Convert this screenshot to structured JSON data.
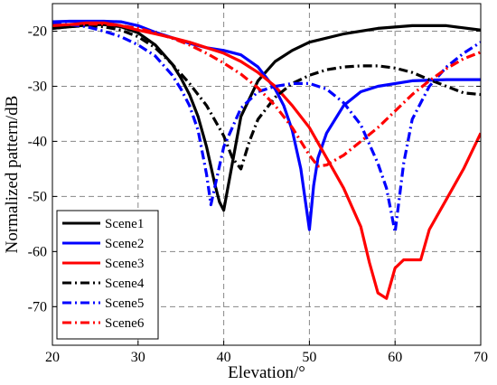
{
  "chart_data": {
    "type": "line",
    "xlabel": "Elevation/°",
    "ylabel": "Normalized pattern/dB",
    "xlim": [
      20,
      70
    ],
    "ylim": [
      -77,
      -15
    ],
    "xticks": [
      20,
      30,
      40,
      50,
      60,
      70
    ],
    "yticks": [
      -20,
      -30,
      -40,
      -50,
      -60,
      -70
    ],
    "grid": true,
    "legend_position": "bottom-left",
    "series": [
      {
        "name": "Scene1",
        "color": "#000000",
        "dash": "solid",
        "x": [
          20,
          22,
          24,
          26,
          28,
          30,
          32,
          34,
          35,
          36,
          37,
          38,
          39,
          39.5,
          40,
          41,
          42,
          44,
          46,
          48,
          50,
          54,
          58,
          62,
          66,
          70
        ],
        "y": [
          -19.5,
          -19.2,
          -18.9,
          -18.8,
          -19.2,
          -20.3,
          -22.5,
          -26,
          -28.5,
          -31.5,
          -35.5,
          -41,
          -48,
          -51,
          -52.5,
          -44,
          -35.5,
          -29,
          -25.5,
          -23.5,
          -22,
          -20.5,
          -19.5,
          -19,
          -19,
          -19.8
        ]
      },
      {
        "name": "Scene2",
        "color": "#0000ff",
        "dash": "solid",
        "x": [
          20,
          22,
          24,
          26,
          28,
          30,
          32,
          34,
          36,
          38,
          40,
          42,
          44,
          46,
          47,
          48,
          49,
          50,
          50.5,
          51,
          52,
          54,
          56,
          58,
          62,
          66,
          70
        ],
        "y": [
          -18.3,
          -18.2,
          -18.2,
          -18.2,
          -18.3,
          -19,
          -20.2,
          -21.2,
          -22.2,
          -23,
          -23.5,
          -24.3,
          -26.5,
          -30.5,
          -33.5,
          -38,
          -45,
          -56,
          -48,
          -43,
          -38.5,
          -33.5,
          -31,
          -30,
          -29,
          -28.8,
          -28.8
        ]
      },
      {
        "name": "Scene3",
        "color": "#ff0000",
        "dash": "solid",
        "x": [
          20,
          22,
          24,
          26,
          28,
          30,
          32,
          34,
          36,
          38,
          40,
          42,
          44,
          46,
          48,
          50,
          52,
          54,
          56,
          57,
          58,
          59,
          60,
          61,
          62,
          63,
          64,
          66,
          68,
          70
        ],
        "y": [
          -19,
          -18.8,
          -18.5,
          -18.5,
          -19,
          -19.8,
          -20.5,
          -21.2,
          -22,
          -23,
          -24,
          -25.5,
          -27.5,
          -30,
          -33.5,
          -37.5,
          -43,
          -48.5,
          -55.5,
          -62,
          -67.5,
          -68.5,
          -63,
          -61.5,
          -61.5,
          -61.5,
          -56,
          -50.5,
          -45,
          -38.5
        ]
      },
      {
        "name": "Scene4",
        "color": "#000000",
        "dash": "dashdot",
        "x": [
          20,
          22,
          24,
          26,
          28,
          30,
          32,
          34,
          36,
          38,
          40,
          41,
          42,
          43,
          44,
          46,
          48,
          50,
          52,
          54,
          56,
          58,
          60,
          62,
          64,
          66,
          68,
          70
        ],
        "y": [
          -19.5,
          -19.2,
          -19,
          -19.2,
          -19.8,
          -21,
          -23,
          -26,
          -29.5,
          -33.5,
          -39,
          -43,
          -45,
          -40,
          -36,
          -32,
          -29.5,
          -28,
          -27,
          -26.5,
          -26.3,
          -26.3,
          -26.7,
          -27.5,
          -28.8,
          -30,
          -31.2,
          -31.5
        ]
      },
      {
        "name": "Scene5",
        "color": "#0000ff",
        "dash": "dashdot",
        "x": [
          20,
          22,
          24,
          26,
          28,
          30,
          32,
          34,
          35,
          36,
          37,
          38,
          38.5,
          39,
          40,
          42,
          44,
          46,
          48,
          50,
          52,
          54,
          56,
          58,
          59,
          60,
          61,
          62,
          64,
          66,
          68,
          70
        ],
        "y": [
          -18.7,
          -18.8,
          -19.2,
          -20,
          -21,
          -22.5,
          -24.5,
          -28,
          -30.5,
          -33.5,
          -38,
          -46,
          -51.5,
          -48,
          -41,
          -34,
          -31,
          -30,
          -29.5,
          -29.5,
          -30.5,
          -33,
          -37,
          -44,
          -48.5,
          -56.5,
          -44,
          -36,
          -30,
          -26.5,
          -24,
          -22
        ]
      },
      {
        "name": "Scene6",
        "color": "#ff0000",
        "dash": "dashdot",
        "x": [
          20,
          22,
          24,
          26,
          28,
          30,
          32,
          34,
          36,
          38,
          40,
          42,
          44,
          46,
          48,
          50,
          51,
          52,
          54,
          56,
          58,
          60,
          62,
          64,
          66,
          68,
          70
        ],
        "y": [
          -19,
          -18.8,
          -18.7,
          -18.7,
          -19,
          -19.5,
          -20.3,
          -21.3,
          -22.5,
          -24,
          -25.8,
          -27.8,
          -30.3,
          -33.5,
          -37.5,
          -42.5,
          -44.5,
          -44.3,
          -42.5,
          -40,
          -37.5,
          -34.5,
          -31.5,
          -29,
          -26.8,
          -25,
          -23.8
        ]
      }
    ]
  }
}
